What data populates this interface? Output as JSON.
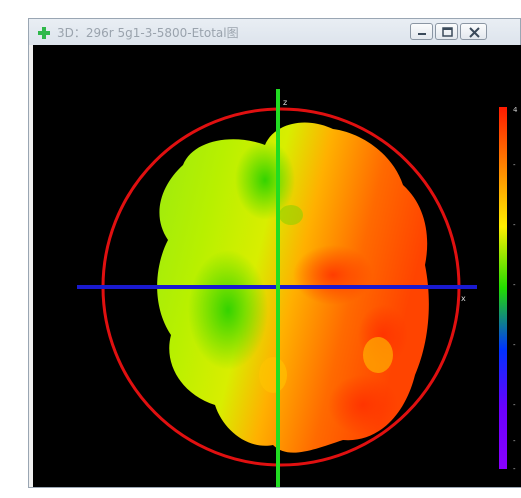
{
  "window": {
    "title": "3D：296r 5g1-3-5800-Etotal图",
    "title_icon": "green-plus-icon",
    "controls": {
      "minimize_icon": "minimize-icon",
      "maximize_icon": "maximize-icon",
      "close_icon": "close-icon"
    }
  },
  "plot": {
    "x_axis_label": "x",
    "vertical_axis_label": "z",
    "colors": {
      "background": "#000000",
      "ring": "#e01010",
      "x_axis": "#1a1ad0",
      "vertical_axis": "#22dd22"
    }
  },
  "colorbar": {
    "top_label": "4",
    "tick_labels": [
      "-",
      "-",
      "-",
      "-",
      "-",
      "-",
      "-"
    ],
    "stops": [
      "#ff1a00",
      "#ff8800",
      "#ffee00",
      "#22dd00",
      "#0033ff",
      "#6a00ff",
      "#8a00ff"
    ]
  }
}
